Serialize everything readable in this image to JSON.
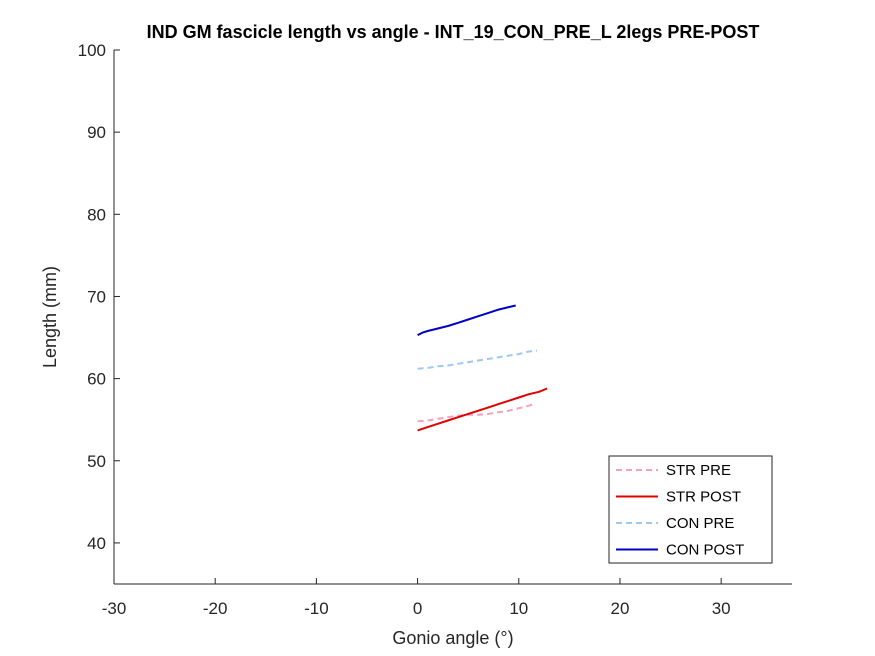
{
  "chart_data": {
    "type": "line",
    "title": "IND GM fascicle length vs angle - INT_19_CON_PRE_L 2legs PRE-POST",
    "xlabel": "Gonio angle (°)",
    "ylabel": "Length (mm)",
    "xlim": [
      -30,
      37
    ],
    "ylim": [
      35,
      100
    ],
    "xticks": [
      -30,
      -20,
      -10,
      0,
      10,
      20,
      30
    ],
    "yticks": [
      40,
      50,
      60,
      70,
      80,
      90,
      100
    ],
    "xtick_labels": [
      "-30",
      "-20",
      "-10",
      "0",
      "10",
      "20",
      "30"
    ],
    "ytick_labels": [
      "40",
      "50",
      "60",
      "70",
      "80",
      "90",
      "100"
    ],
    "grid": false,
    "legend_position": "bottom-right",
    "series": [
      {
        "name": "STR PRE",
        "color": "#f4a0c0",
        "dashed": true,
        "x": [
          0,
          1,
          2,
          3,
          4,
          5,
          6,
          7,
          8,
          9,
          10,
          11,
          11.5
        ],
        "y": [
          54.8,
          54.9,
          55.1,
          55.3,
          55.5,
          55.6,
          55.6,
          55.7,
          55.9,
          56.1,
          56.4,
          56.7,
          56.9
        ]
      },
      {
        "name": "STR POST",
        "color": "#e00000",
        "dashed": false,
        "x": [
          0,
          1,
          2,
          3,
          4,
          5,
          6,
          7,
          8,
          9,
          10,
          11,
          12,
          12.8
        ],
        "y": [
          53.7,
          54.1,
          54.5,
          54.9,
          55.3,
          55.7,
          56.1,
          56.5,
          56.9,
          57.3,
          57.7,
          58.1,
          58.4,
          58.8
        ]
      },
      {
        "name": "CON PRE",
        "color": "#a0c8f0",
        "dashed": true,
        "x": [
          0,
          1,
          2,
          3,
          4,
          5,
          6,
          7,
          8,
          9,
          10,
          11,
          11.8
        ],
        "y": [
          61.2,
          61.3,
          61.5,
          61.6,
          61.8,
          62.0,
          62.2,
          62.4,
          62.6,
          62.8,
          63.0,
          63.3,
          63.4
        ]
      },
      {
        "name": "CON POST",
        "color": "#0000c8",
        "dashed": false,
        "x": [
          0,
          0.5,
          1,
          2,
          3,
          4,
          5,
          6,
          7,
          8,
          9,
          9.7
        ],
        "y": [
          65.3,
          65.6,
          65.8,
          66.1,
          66.4,
          66.8,
          67.2,
          67.6,
          68.0,
          68.4,
          68.7,
          68.9
        ]
      }
    ]
  }
}
